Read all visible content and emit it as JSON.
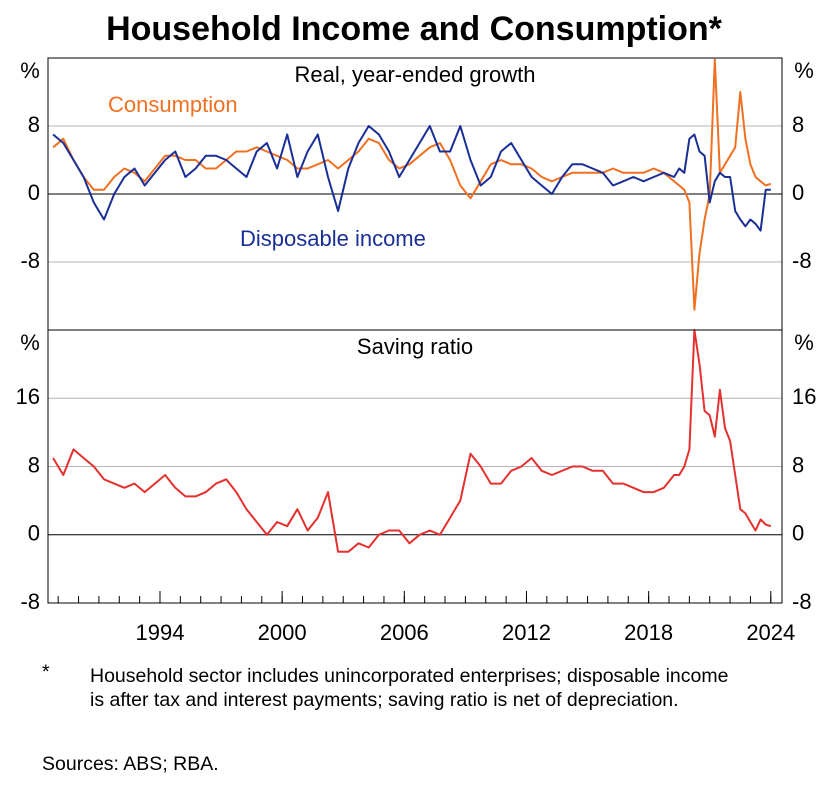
{
  "title": "Household Income and Consumption*",
  "footnote_marker": "*",
  "footnote": "Household sector includes unincorporated enterprises; disposable income is after tax and interest payments; saving ratio is net of depreciation.",
  "sources": "Sources: ABS; RBA.",
  "chart_data": {
    "type": "line",
    "x": [
      1988.75,
      1989.25,
      1989.75,
      1990.25,
      1990.75,
      1991.25,
      1991.75,
      1992.25,
      1992.75,
      1993.25,
      1993.75,
      1994.25,
      1994.75,
      1995.25,
      1995.75,
      1996.25,
      1996.75,
      1997.25,
      1997.75,
      1998.25,
      1998.75,
      1999.25,
      1999.75,
      2000.25,
      2000.75,
      2001.25,
      2001.75,
      2002.25,
      2002.75,
      2003.25,
      2003.75,
      2004.25,
      2004.75,
      2005.25,
      2005.75,
      2006.25,
      2006.75,
      2007.25,
      2007.75,
      2008.25,
      2008.75,
      2009.25,
      2009.75,
      2010.25,
      2010.75,
      2011.25,
      2011.75,
      2012.25,
      2012.75,
      2013.25,
      2013.75,
      2014.25,
      2014.75,
      2015.25,
      2015.75,
      2016.25,
      2016.75,
      2017.25,
      2017.75,
      2018.25,
      2018.75,
      2019.25,
      2019.5,
      2019.75,
      2020,
      2020.25,
      2020.5,
      2020.75,
      2021,
      2021.25,
      2021.5,
      2021.75,
      2022,
      2022.25,
      2022.5,
      2022.75,
      2023,
      2023.25,
      2023.5,
      2023.75,
      2024
    ],
    "xlim": [
      1988.5,
      2024.55
    ],
    "xticks": [
      1994,
      2000,
      2006,
      2012,
      2018,
      2024
    ],
    "xminor": [
      1989,
      1990,
      1991,
      1992,
      1993,
      1994,
      1995,
      1996,
      1997,
      1998,
      1999,
      2000,
      2001,
      2002,
      2003,
      2004,
      2005,
      2006,
      2007,
      2008,
      2009,
      2010,
      2011,
      2012,
      2013,
      2014,
      2015,
      2016,
      2017,
      2018,
      2019,
      2020,
      2021,
      2022,
      2023,
      2024
    ],
    "grid": true,
    "panels": [
      {
        "title": "Real, year-ended growth",
        "ylabel": "%",
        "ylim": [
          -16,
          16
        ],
        "yticks": [
          -8,
          0,
          8
        ],
        "series": [
          {
            "name": "Consumption",
            "color": "#f07022",
            "values": [
              5.5,
              6.5,
              4,
              2,
              0.5,
              0.5,
              2,
              3,
              2.5,
              1.5,
              3,
              4.5,
              4.5,
              4,
              4,
              3,
              3,
              4,
              5,
              5,
              5.5,
              5,
              4.5,
              4,
              3,
              3,
              3.5,
              4,
              3,
              4,
              5,
              6.5,
              6,
              4,
              3,
              3.5,
              4.5,
              5.5,
              6,
              4,
              1,
              -0.5,
              1.5,
              3.5,
              4,
              3.5,
              3.5,
              3,
              2,
              1.5,
              2,
              2.5,
              2.5,
              2.5,
              2.5,
              3,
              2.5,
              2.5,
              2.5,
              3,
              2.5,
              1.5,
              1,
              0.5,
              -1,
              -13.6,
              -7,
              -3,
              0,
              15.8,
              2.5,
              3.5,
              4.5,
              5.5,
              12,
              6.5,
              3.5,
              2,
              1.5,
              1,
              1.2
            ]
          },
          {
            "name": "Disposable income",
            "color": "#1a2f96",
            "values": [
              7,
              6,
              4,
              2,
              -1,
              -3,
              0,
              2,
              3,
              1,
              2.5,
              4,
              5,
              2,
              3,
              4.5,
              4.5,
              4,
              3,
              2,
              5,
              6,
              3,
              7,
              2,
              5,
              7,
              2,
              -2,
              3,
              6,
              8,
              7,
              5,
              2,
              4,
              6,
              8,
              5,
              5,
              8,
              4,
              1,
              2,
              5,
              6,
              4,
              2,
              1,
              0,
              2,
              3.5,
              3.5,
              3,
              2.5,
              1,
              1.5,
              2,
              1.5,
              2,
              2.5,
              2,
              3,
              2.5,
              6.5,
              7,
              5,
              4.5,
              -1,
              1.5,
              2.5,
              2,
              2,
              -2,
              -3,
              -3.8,
              -3,
              -3.5,
              -4.3,
              0.5,
              0.5
            ]
          }
        ]
      },
      {
        "title": "Saving ratio",
        "ylabel": "%",
        "ylim": [
          -8,
          24
        ],
        "yticks": [
          -8,
          0,
          8,
          16
        ],
        "series": [
          {
            "color": "#e4312f",
            "values": [
              9,
              7,
              10,
              9,
              8,
              6.5,
              6,
              5.5,
              6,
              5,
              6,
              7,
              5.5,
              4.5,
              4.5,
              5,
              6,
              6.5,
              5,
              3,
              1.5,
              0,
              1.5,
              1,
              3,
              0.5,
              2,
              5,
              -2,
              -2,
              -1,
              -1.5,
              0,
              0.5,
              0.5,
              -1,
              0,
              0.5,
              0,
              2,
              4,
              9.5,
              8,
              6,
              6,
              7.5,
              8,
              9,
              7.5,
              7,
              7.5,
              8,
              8,
              7.5,
              7.5,
              6,
              6,
              5.5,
              5,
              5,
              5.5,
              7,
              7,
              8,
              10,
              24,
              20,
              14.5,
              14,
              11.5,
              17,
              12.5,
              11,
              7,
              3,
              2.5,
              1.5,
              0.5,
              1.8,
              1.2,
              1
            ]
          }
        ]
      }
    ]
  }
}
